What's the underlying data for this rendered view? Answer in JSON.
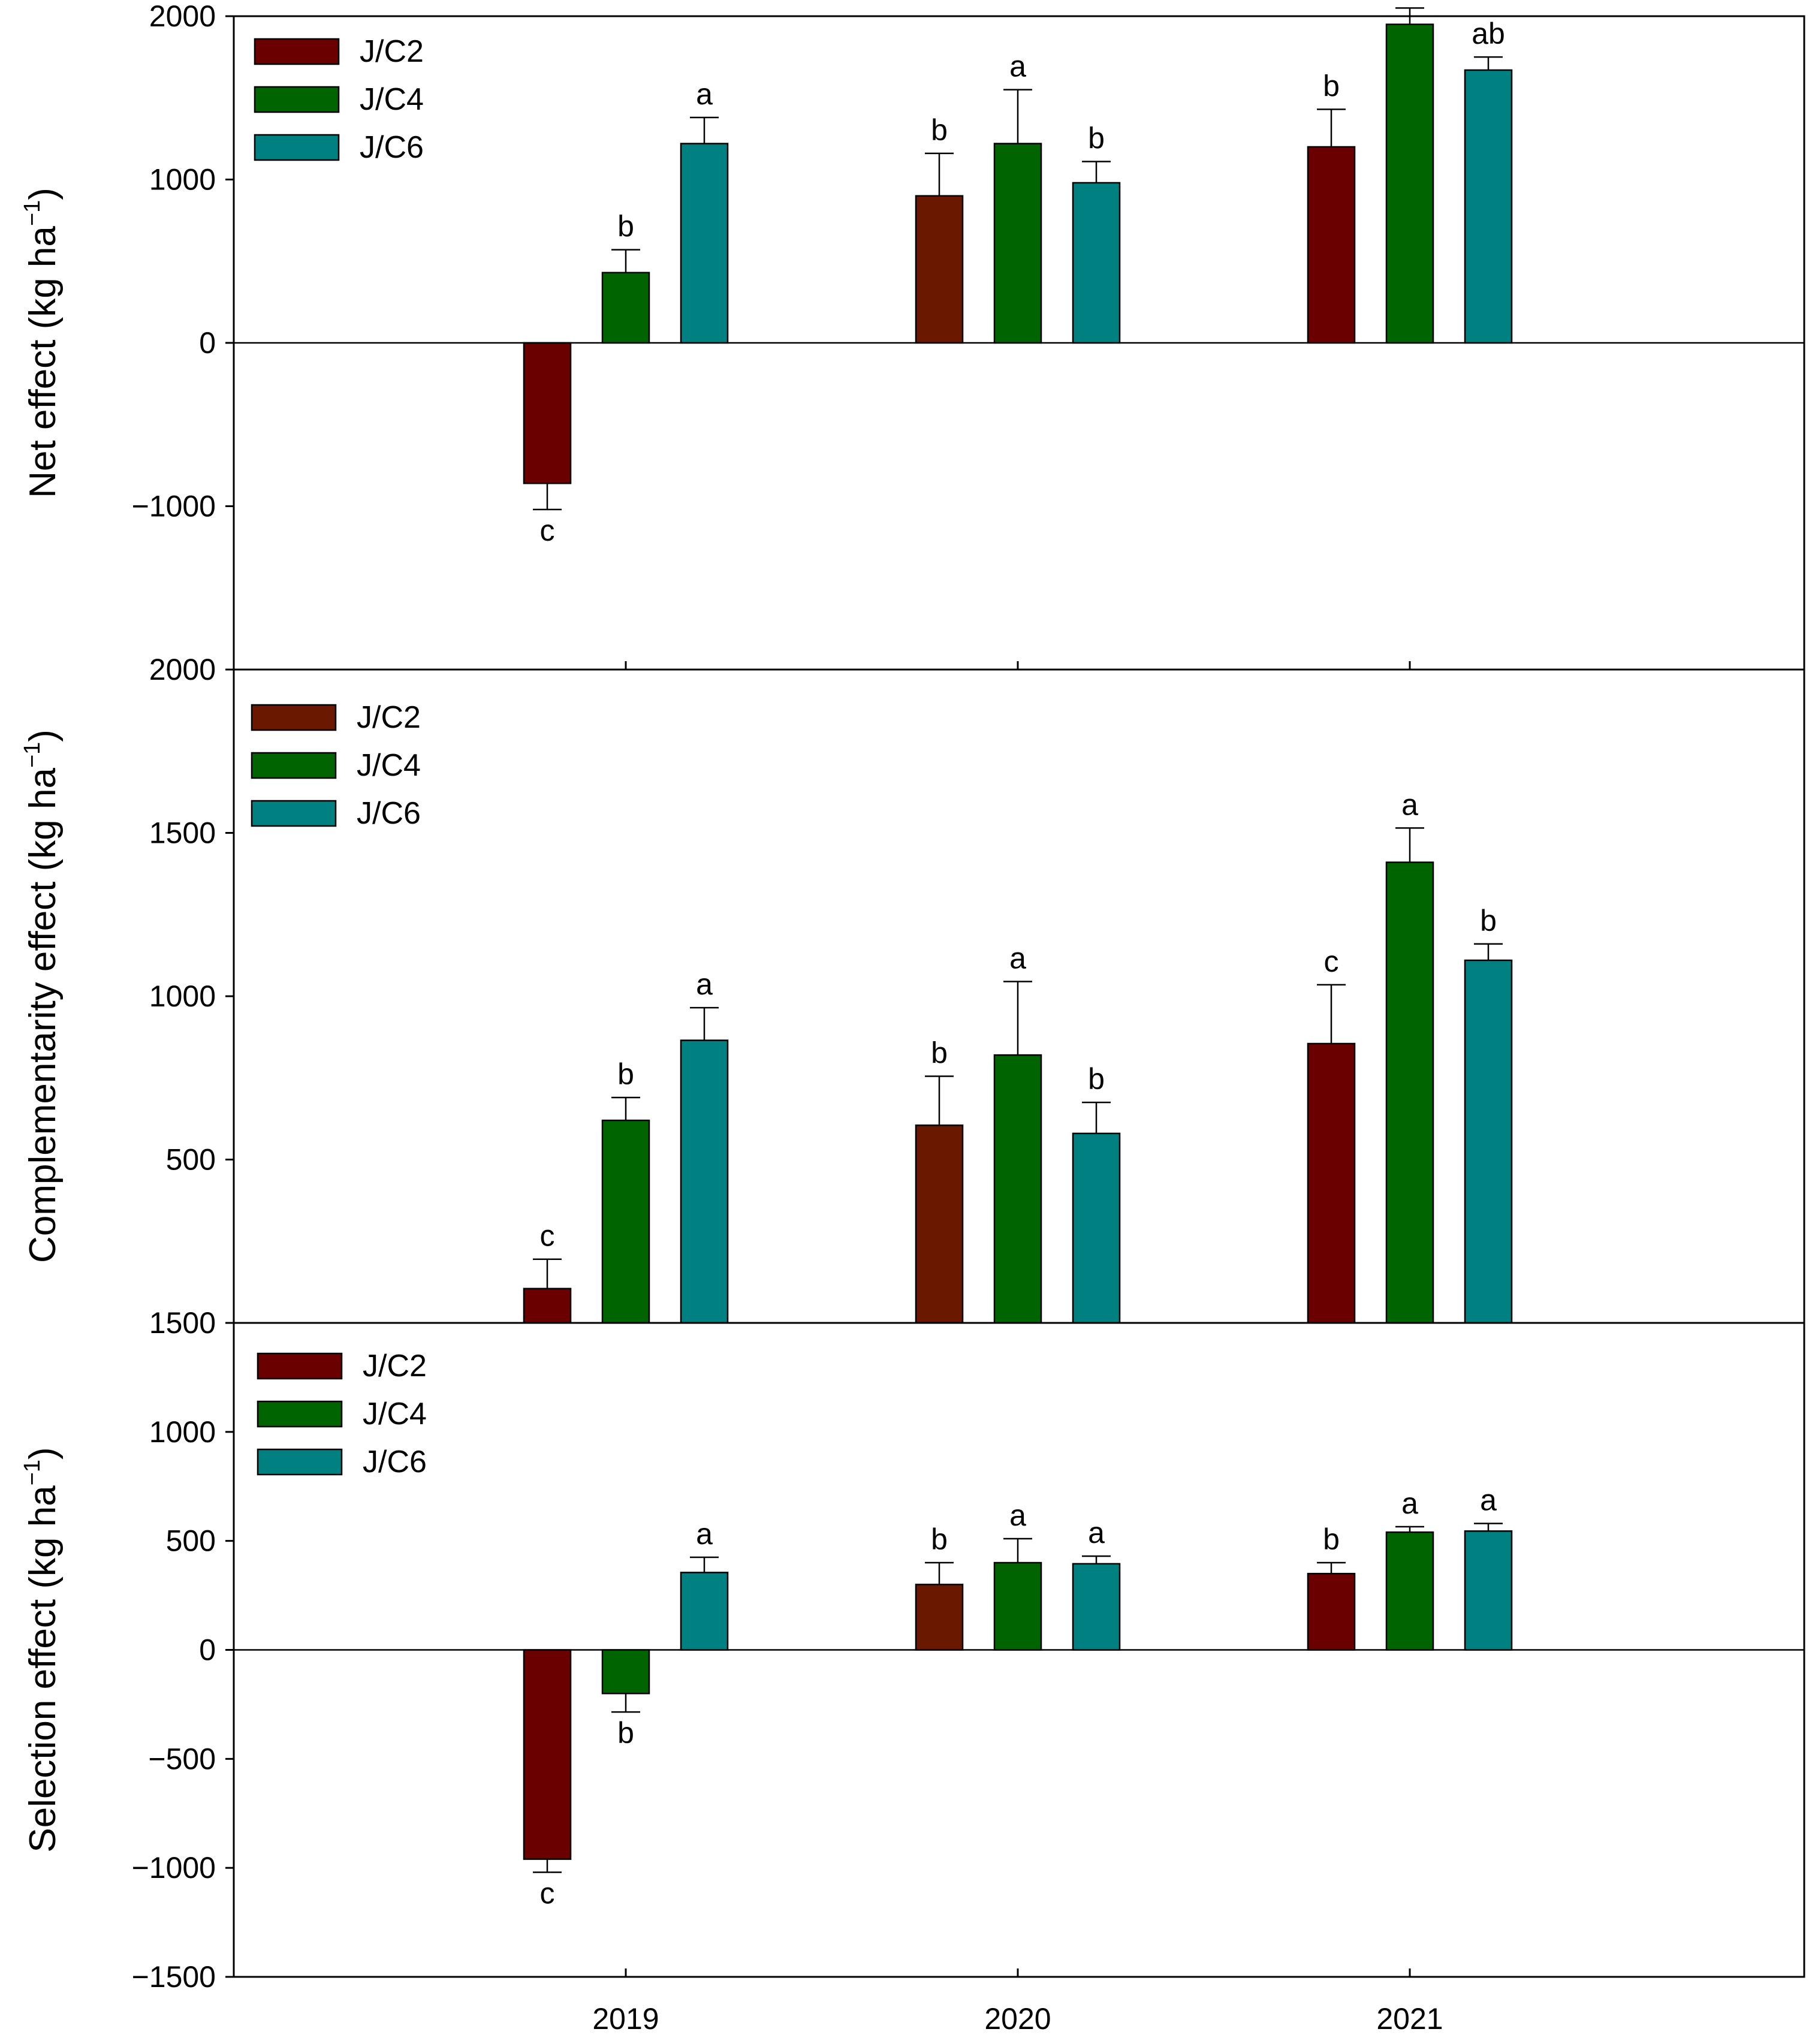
{
  "chart_data": {
    "type": "bar",
    "categories": [
      "2019",
      "2020",
      "2021"
    ],
    "series_names": [
      "J/C2",
      "J/C4",
      "J/C6"
    ],
    "colors": {
      "J/C2": [
        "#6b0000",
        "#6b1800",
        "#6b0000"
      ],
      "J/C4": "#006400",
      "J/C6": "#008080"
    },
    "panels": [
      {
        "ylabel_main": "Net effect (kg ha",
        "ylabel_sup": "−1",
        "ylabel_end": ")",
        "ylim": [
          -2000,
          2000
        ],
        "yticks": [
          -1000,
          0,
          1000,
          2000
        ],
        "ytick_labels": [
          "−1000",
          "0",
          "1000",
          "2000"
        ],
        "legend": [
          "J/C2",
          "J/C4",
          "J/C6"
        ],
        "series": [
          {
            "name": "J/C2",
            "values": [
              -860,
              900,
              1200
            ],
            "errors": [
              160,
              260,
              230
            ],
            "letters": [
              "c",
              "b",
              "b"
            ]
          },
          {
            "name": "J/C4",
            "values": [
              430,
              1220,
              1950
            ],
            "errors": [
              140,
              330,
              100
            ],
            "letters": [
              "b",
              "a",
              "a"
            ]
          },
          {
            "name": "J/C6",
            "values": [
              1220,
              980,
              1670
            ],
            "errors": [
              160,
              130,
              80
            ],
            "letters": [
              "a",
              "b",
              "ab"
            ]
          }
        ]
      },
      {
        "ylabel_main": "Complementarity effect (kg ha",
        "ylabel_sup": "−1",
        "ylabel_end": ")",
        "ylim": [
          0,
          2000
        ],
        "yticks": [
          500,
          1000,
          1500,
          2000
        ],
        "ytick_labels": [
          "500",
          "1000",
          "1500",
          "2000"
        ],
        "legend": [
          "J/C2",
          "J/C4",
          "J/C6"
        ],
        "series": [
          {
            "name": "J/C2",
            "values": [
              105,
              605,
              855
            ],
            "errors": [
              90,
              150,
              180
            ],
            "letters": [
              "c",
              "b",
              "c"
            ]
          },
          {
            "name": "J/C4",
            "values": [
              620,
              820,
              1410
            ],
            "errors": [
              70,
              225,
              105
            ],
            "letters": [
              "b",
              "a",
              "a"
            ]
          },
          {
            "name": "J/C6",
            "values": [
              865,
              580,
              1110
            ],
            "errors": [
              100,
              95,
              50
            ],
            "letters": [
              "a",
              "b",
              "b"
            ]
          }
        ]
      },
      {
        "ylabel_main": "Selection effect (kg ha",
        "ylabel_sup": "−1",
        "ylabel_end": ")",
        "ylim": [
          -1500,
          1500
        ],
        "yticks": [
          -1500,
          -1000,
          -500,
          0,
          500,
          1000,
          1500
        ],
        "ytick_labels": [
          "−1500",
          "−1000",
          "−500",
          "0",
          "500",
          "1000",
          "1500"
        ],
        "legend": [
          "J/C2",
          "J/C4",
          "J/C6"
        ],
        "series": [
          {
            "name": "J/C2",
            "values": [
              -960,
              300,
              350
            ],
            "errors": [
              60,
              100,
              50
            ],
            "letters": [
              "c",
              "b",
              "b"
            ]
          },
          {
            "name": "J/C4",
            "values": [
              -200,
              400,
              540
            ],
            "errors": [
              85,
              110,
              25
            ],
            "letters": [
              "b",
              "a",
              "a"
            ]
          },
          {
            "name": "J/C6",
            "values": [
              355,
              395,
              545
            ],
            "errors": [
              70,
              35,
              35
            ],
            "letters": [
              "a",
              "a",
              "a"
            ]
          }
        ]
      }
    ]
  }
}
